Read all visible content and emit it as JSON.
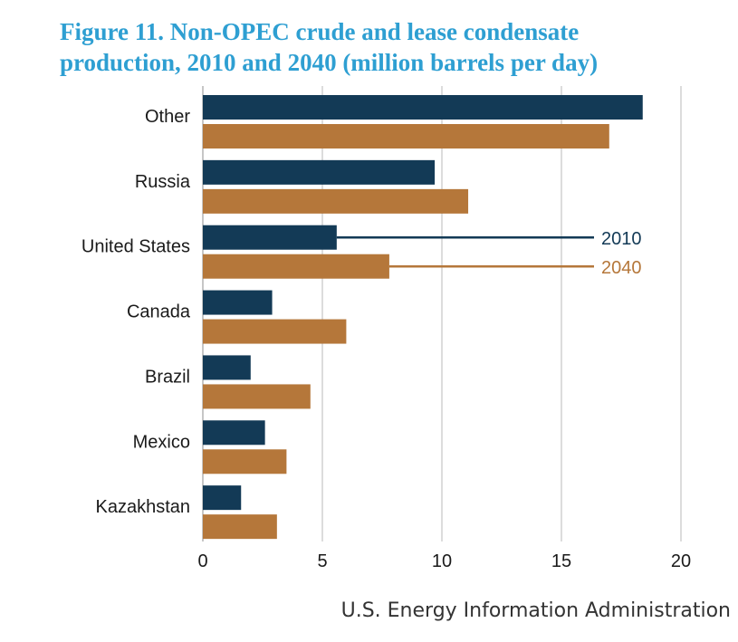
{
  "title": {
    "line1": "Figure 11. Non-OPEC crude and lease condensate",
    "line2": "production, 2010 and 2040 (million barrels per day)"
  },
  "source": "U.S. Energy Information Administration",
  "chart_data": {
    "type": "bar",
    "orientation": "horizontal",
    "categories": [
      "Other",
      "Russia",
      "United States",
      "Canada",
      "Brazil",
      "Mexico",
      "Kazakhstan"
    ],
    "series": [
      {
        "name": "2010",
        "color": "#133a56",
        "values": [
          18.4,
          9.7,
          5.6,
          2.9,
          2.0,
          2.6,
          1.6
        ]
      },
      {
        "name": "2040",
        "color": "#b5773a",
        "values": [
          17.0,
          11.1,
          7.8,
          6.0,
          4.5,
          3.5,
          3.1
        ]
      }
    ],
    "xlim": [
      0,
      20
    ],
    "xticks": [
      "0",
      "5",
      "10",
      "15",
      "20"
    ],
    "grid": true,
    "legend": "inline labels pointing to United States bars"
  }
}
